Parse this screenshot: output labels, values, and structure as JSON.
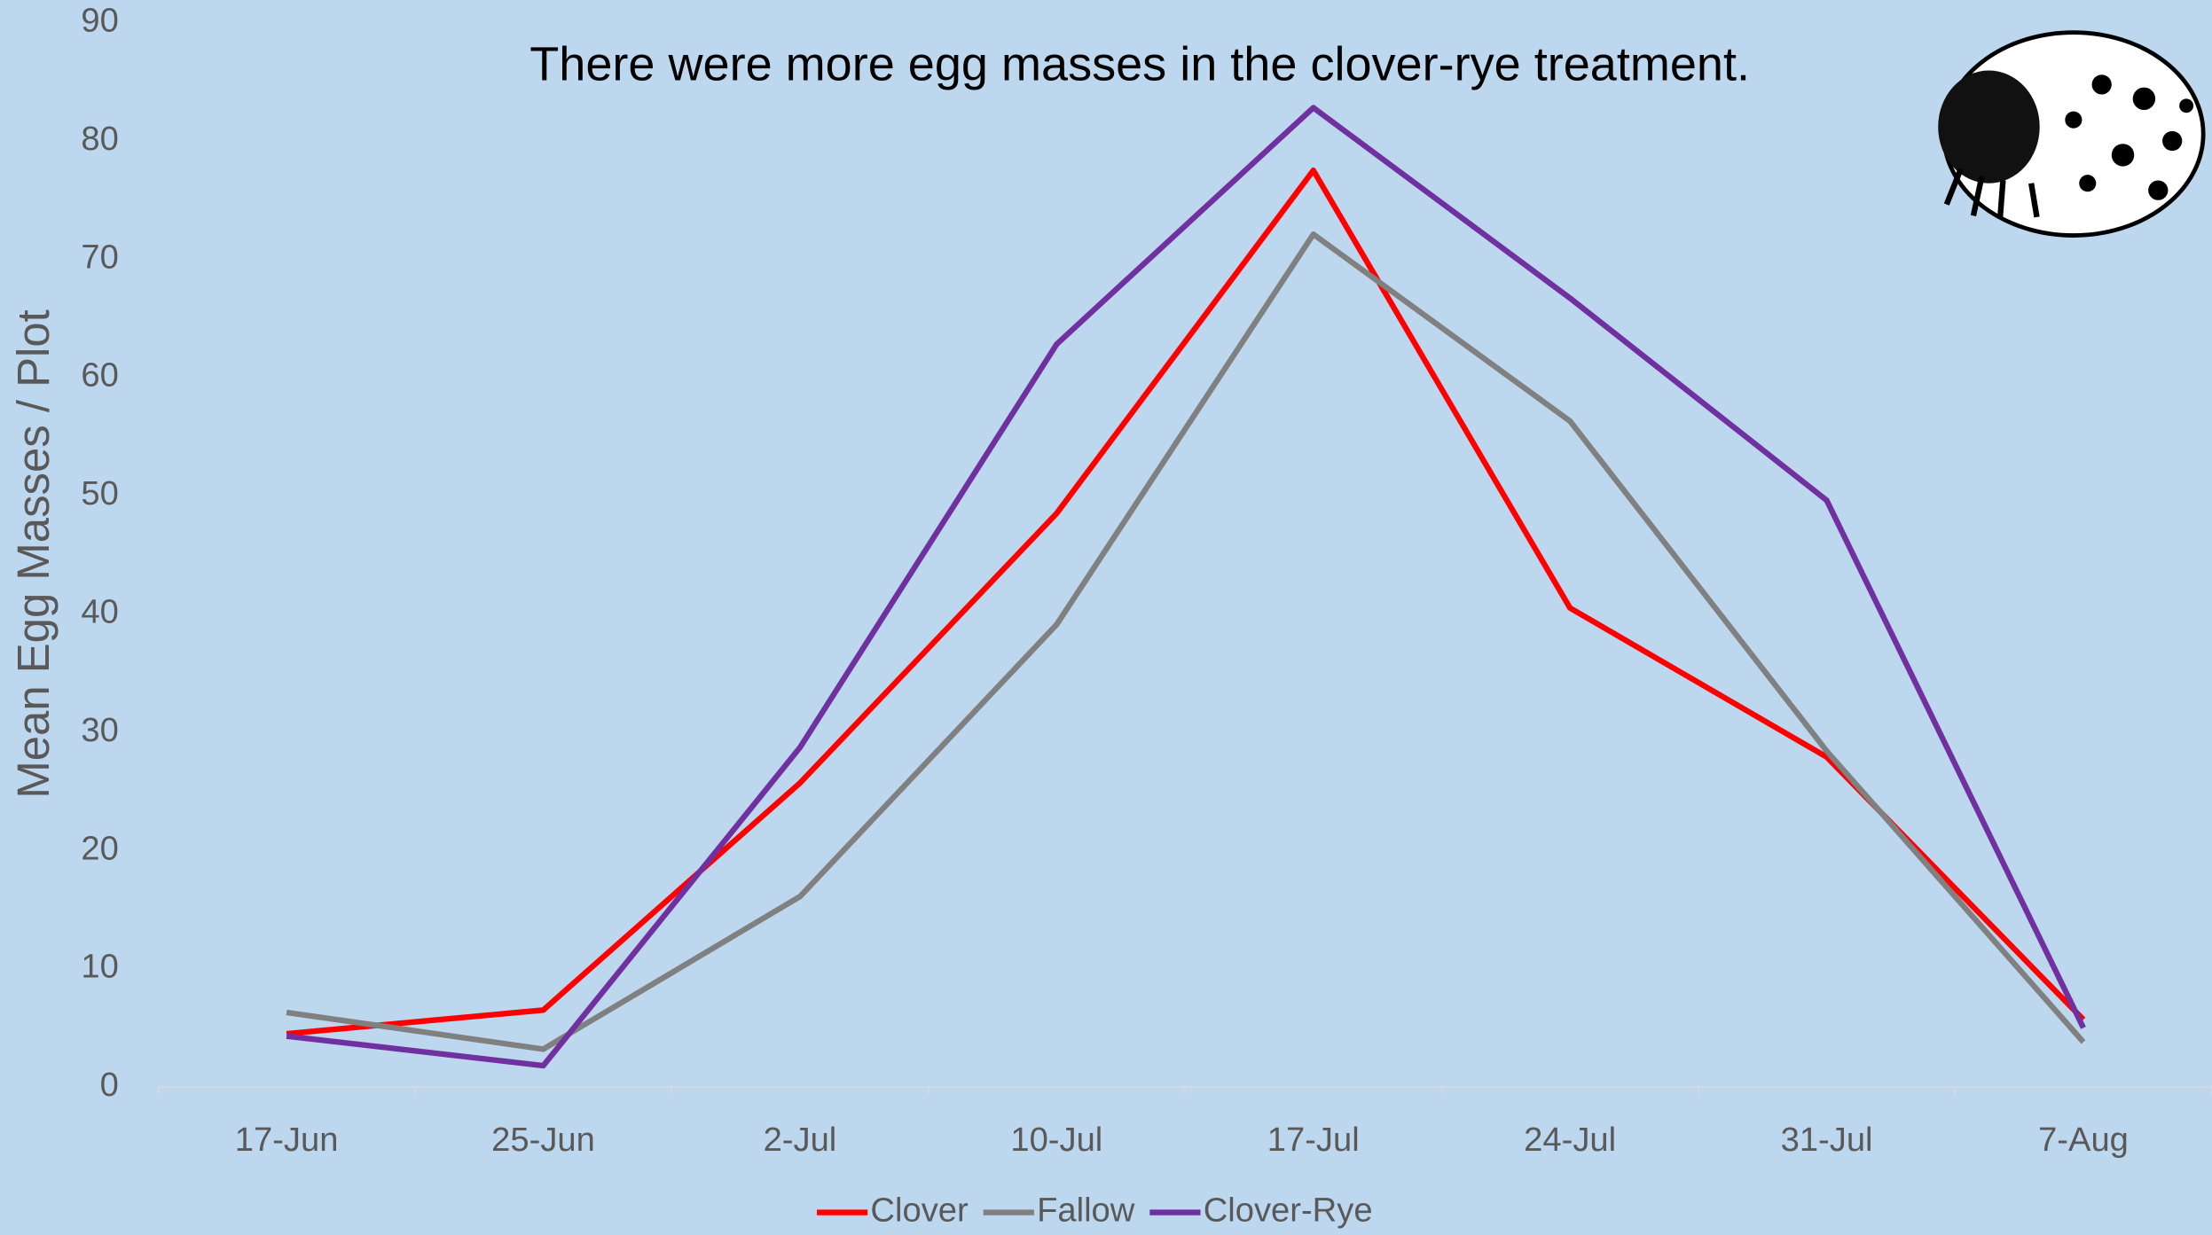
{
  "chart_data": {
    "type": "line",
    "annotation": "There were more egg masses in the clover-rye treatment.",
    "y_label": "Mean Egg Masses / Plot",
    "categories": [
      "17-Jun",
      "25-Jun",
      "2-Jul",
      "10-Jul",
      "17-Jul",
      "24-Jul",
      "31-Jul",
      "7-Aug"
    ],
    "series": [
      {
        "name": "Clover",
        "color": "#FF0000",
        "values": [
          4.5,
          6.5,
          25.7,
          48.5,
          77.5,
          40.5,
          27.9,
          5.7
        ]
      },
      {
        "name": "Fallow",
        "color": "#808080",
        "values": [
          6.3,
          3.2,
          16.1,
          39.1,
          72.1,
          56.3,
          28.4,
          3.8
        ]
      },
      {
        "name": "Clover-Rye",
        "color": "#7030A0",
        "values": [
          4.3,
          1.8,
          28.7,
          62.8,
          82.8,
          66.7,
          49.6,
          5.0
        ]
      }
    ],
    "ylim": [
      0,
      90
    ],
    "yticks": [
      0,
      10,
      20,
      30,
      40,
      50,
      60,
      70,
      80,
      90
    ],
    "grid": false,
    "legend": "bottom"
  }
}
